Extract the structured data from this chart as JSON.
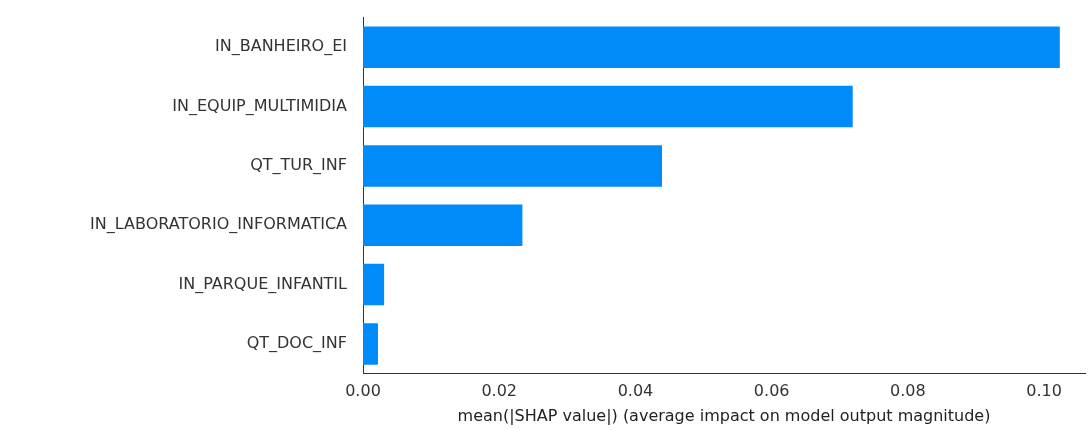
{
  "chart_data": {
    "type": "bar",
    "orientation": "horizontal",
    "xlabel": "mean(|SHAP value|) (average impact on model output magnitude)",
    "categories": [
      "IN_BANHEIRO_EI",
      "IN_EQUIP_MULTIMIDIA",
      "QT_TUR_INF",
      "IN_LABORATORIO_INFORMATICA",
      "IN_PARQUE_INFANTIL",
      "QT_DOC_INF"
    ],
    "values": [
      0.1023,
      0.0719,
      0.0439,
      0.0234,
      0.0031,
      0.0022
    ],
    "color": "#008bfb",
    "xlim": [
      0,
      0.106
    ],
    "xticks": [
      {
        "value": 0,
        "label": "0.00"
      },
      {
        "value": 0.02,
        "label": "0.02"
      },
      {
        "value": 0.04,
        "label": "0.04"
      },
      {
        "value": 0.06,
        "label": "0.06"
      },
      {
        "value": 0.08,
        "label": "0.08"
      },
      {
        "value": 0.1,
        "label": "0.10"
      }
    ],
    "grid": false,
    "legend": false
  }
}
